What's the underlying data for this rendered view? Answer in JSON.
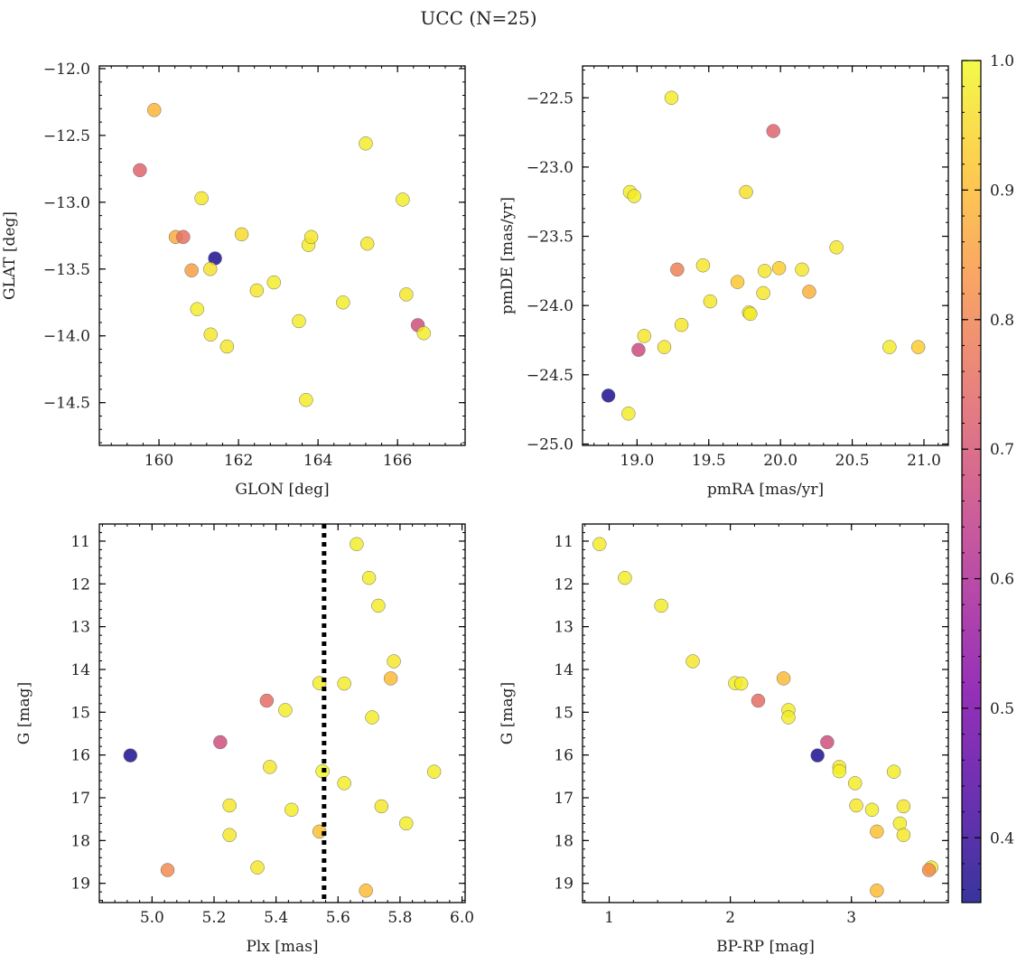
{
  "figure": {
    "title": "UCC (N=25)"
  },
  "colorbar": {
    "range": [
      0.35,
      1.0
    ],
    "ticks": [
      0.4,
      0.5,
      0.6,
      0.7,
      0.8,
      0.9,
      1.0
    ],
    "colormap": "plasma"
  },
  "chart_data": [
    {
      "type": "scatter",
      "xlabel": "GLON [deg]",
      "ylabel": "GLAT [deg]",
      "xlim": [
        158.5,
        167.7
      ],
      "ylim": [
        -14.82,
        -11.98
      ],
      "xticks": [
        160,
        162,
        164,
        166
      ],
      "yticks": [
        -14.5,
        -14.0,
        -13.5,
        -13.0,
        -12.5,
        -12.0
      ],
      "points": [
        {
          "x": 159.88,
          "y": -12.31,
          "c": 0.89
        },
        {
          "x": 159.52,
          "y": -12.76,
          "c": 0.73
        },
        {
          "x": 161.07,
          "y": -12.97,
          "c": 0.97
        },
        {
          "x": 160.42,
          "y": -13.26,
          "c": 0.87
        },
        {
          "x": 160.61,
          "y": -13.26,
          "c": 0.76
        },
        {
          "x": 161.41,
          "y": -13.42,
          "c": 0.36
        },
        {
          "x": 161.29,
          "y": -13.5,
          "c": 0.96
        },
        {
          "x": 160.82,
          "y": -13.51,
          "c": 0.85
        },
        {
          "x": 162.08,
          "y": -13.24,
          "c": 0.95
        },
        {
          "x": 162.89,
          "y": -13.6,
          "c": 0.98
        },
        {
          "x": 162.46,
          "y": -13.66,
          "c": 0.97
        },
        {
          "x": 160.96,
          "y": -13.8,
          "c": 0.98
        },
        {
          "x": 161.3,
          "y": -13.99,
          "c": 0.97
        },
        {
          "x": 161.71,
          "y": -14.08,
          "c": 0.97
        },
        {
          "x": 163.52,
          "y": -13.89,
          "c": 0.98
        },
        {
          "x": 163.76,
          "y": -13.32,
          "c": 0.98
        },
        {
          "x": 163.83,
          "y": -13.26,
          "c": 0.97
        },
        {
          "x": 163.7,
          "y": -14.48,
          "c": 0.98
        },
        {
          "x": 164.63,
          "y": -13.75,
          "c": 0.98
        },
        {
          "x": 165.2,
          "y": -12.56,
          "c": 0.98
        },
        {
          "x": 165.24,
          "y": -13.31,
          "c": 0.97
        },
        {
          "x": 166.13,
          "y": -12.98,
          "c": 0.98
        },
        {
          "x": 166.22,
          "y": -13.69,
          "c": 0.97
        },
        {
          "x": 166.51,
          "y": -13.92,
          "c": 0.68
        },
        {
          "x": 166.66,
          "y": -13.98,
          "c": 0.98
        }
      ]
    },
    {
      "type": "scatter",
      "xlabel": "pmRA [mas/yr]",
      "ylabel": "pmDE [mas/yr]",
      "xlim": [
        18.62,
        21.17
      ],
      "ylim": [
        -25.01,
        -22.27
      ],
      "xticks": [
        19.0,
        19.5,
        20.0,
        20.5,
        21.0
      ],
      "yticks": [
        -25.0,
        -24.5,
        -24.0,
        -23.5,
        -23.0,
        -22.5
      ],
      "points": [
        {
          "x": 19.24,
          "y": -22.5,
          "c": 0.98
        },
        {
          "x": 19.95,
          "y": -22.74,
          "c": 0.73
        },
        {
          "x": 18.95,
          "y": -23.18,
          "c": 0.98
        },
        {
          "x": 18.98,
          "y": -23.21,
          "c": 0.98
        },
        {
          "x": 19.76,
          "y": -23.18,
          "c": 0.96
        },
        {
          "x": 20.39,
          "y": -23.58,
          "c": 0.97
        },
        {
          "x": 19.28,
          "y": -23.74,
          "c": 0.79
        },
        {
          "x": 19.46,
          "y": -23.71,
          "c": 0.97
        },
        {
          "x": 19.7,
          "y": -23.83,
          "c": 0.92
        },
        {
          "x": 19.89,
          "y": -23.75,
          "c": 0.97
        },
        {
          "x": 19.99,
          "y": -23.73,
          "c": 0.93
        },
        {
          "x": 20.15,
          "y": -23.74,
          "c": 0.97
        },
        {
          "x": 20.2,
          "y": -23.9,
          "c": 0.88
        },
        {
          "x": 19.51,
          "y": -23.97,
          "c": 0.97
        },
        {
          "x": 19.88,
          "y": -23.91,
          "c": 0.97
        },
        {
          "x": 19.78,
          "y": -24.05,
          "c": 0.97
        },
        {
          "x": 19.79,
          "y": -24.06,
          "c": 0.98
        },
        {
          "x": 19.31,
          "y": -24.14,
          "c": 0.97
        },
        {
          "x": 19.05,
          "y": -24.22,
          "c": 0.97
        },
        {
          "x": 19.01,
          "y": -24.32,
          "c": 0.67
        },
        {
          "x": 19.19,
          "y": -24.3,
          "c": 0.97
        },
        {
          "x": 20.76,
          "y": -24.3,
          "c": 0.98
        },
        {
          "x": 20.96,
          "y": -24.3,
          "c": 0.93
        },
        {
          "x": 18.8,
          "y": -24.65,
          "c": 0.36
        },
        {
          "x": 18.94,
          "y": -24.78,
          "c": 0.98
        }
      ]
    },
    {
      "type": "scatter",
      "xlabel": "Plx [mas]",
      "ylabel": "G [mag]",
      "xlim": [
        4.83,
        6.01
      ],
      "ylim": [
        19.45,
        10.6
      ],
      "xticks": [
        5.0,
        5.2,
        5.4,
        5.6,
        5.8,
        6.0
      ],
      "yticks": [
        11,
        12,
        13,
        14,
        15,
        16,
        17,
        18,
        19
      ],
      "vline": {
        "x": 5.555,
        "style": "dotted"
      },
      "points": [
        {
          "x": 5.66,
          "y": 11.07,
          "c": 0.98
        },
        {
          "x": 5.7,
          "y": 11.86,
          "c": 0.98
        },
        {
          "x": 5.73,
          "y": 12.51,
          "c": 0.98
        },
        {
          "x": 5.78,
          "y": 13.81,
          "c": 0.97
        },
        {
          "x": 5.77,
          "y": 14.21,
          "c": 0.9
        },
        {
          "x": 5.54,
          "y": 14.32,
          "c": 0.98
        },
        {
          "x": 5.62,
          "y": 14.33,
          "c": 0.98
        },
        {
          "x": 5.37,
          "y": 14.73,
          "c": 0.75
        },
        {
          "x": 5.43,
          "y": 14.95,
          "c": 0.98
        },
        {
          "x": 5.71,
          "y": 15.12,
          "c": 0.98
        },
        {
          "x": 5.22,
          "y": 15.7,
          "c": 0.68
        },
        {
          "x": 4.93,
          "y": 16.01,
          "c": 0.36
        },
        {
          "x": 5.38,
          "y": 16.28,
          "c": 0.97
        },
        {
          "x": 5.55,
          "y": 16.38,
          "c": 0.99
        },
        {
          "x": 5.91,
          "y": 16.39,
          "c": 0.98
        },
        {
          "x": 5.62,
          "y": 16.66,
          "c": 0.98
        },
        {
          "x": 5.25,
          "y": 17.18,
          "c": 0.97
        },
        {
          "x": 5.74,
          "y": 17.2,
          "c": 0.97
        },
        {
          "x": 5.45,
          "y": 17.28,
          "c": 0.98
        },
        {
          "x": 5.82,
          "y": 17.6,
          "c": 0.98
        },
        {
          "x": 5.54,
          "y": 17.79,
          "c": 0.91
        },
        {
          "x": 5.25,
          "y": 17.87,
          "c": 0.97
        },
        {
          "x": 5.34,
          "y": 18.63,
          "c": 0.97
        },
        {
          "x": 5.05,
          "y": 18.69,
          "c": 0.81
        },
        {
          "x": 5.69,
          "y": 19.17,
          "c": 0.9
        }
      ]
    },
    {
      "type": "scatter",
      "xlabel": "BP-RP [mag]",
      "ylabel": "G [mag]",
      "xlim": [
        0.78,
        3.8
      ],
      "ylim": [
        19.45,
        10.6
      ],
      "xticks": [
        1,
        2,
        3
      ],
      "yticks": [
        11,
        12,
        13,
        14,
        15,
        16,
        17,
        18,
        19
      ],
      "points": [
        {
          "x": 0.92,
          "y": 11.07,
          "c": 0.98
        },
        {
          "x": 1.13,
          "y": 11.86,
          "c": 0.98
        },
        {
          "x": 1.43,
          "y": 12.51,
          "c": 0.98
        },
        {
          "x": 1.69,
          "y": 13.81,
          "c": 0.97
        },
        {
          "x": 2.44,
          "y": 14.21,
          "c": 0.9
        },
        {
          "x": 2.04,
          "y": 14.32,
          "c": 0.98
        },
        {
          "x": 2.09,
          "y": 14.33,
          "c": 0.98
        },
        {
          "x": 2.23,
          "y": 14.73,
          "c": 0.75
        },
        {
          "x": 2.48,
          "y": 14.95,
          "c": 0.98
        },
        {
          "x": 2.48,
          "y": 15.12,
          "c": 0.98
        },
        {
          "x": 2.8,
          "y": 15.7,
          "c": 0.68
        },
        {
          "x": 2.72,
          "y": 16.01,
          "c": 0.36
        },
        {
          "x": 2.9,
          "y": 16.28,
          "c": 0.97
        },
        {
          "x": 2.9,
          "y": 16.38,
          "c": 0.99
        },
        {
          "x": 3.35,
          "y": 16.39,
          "c": 0.98
        },
        {
          "x": 3.03,
          "y": 16.66,
          "c": 0.98
        },
        {
          "x": 3.04,
          "y": 17.18,
          "c": 0.97
        },
        {
          "x": 3.43,
          "y": 17.2,
          "c": 0.97
        },
        {
          "x": 3.17,
          "y": 17.28,
          "c": 0.98
        },
        {
          "x": 3.4,
          "y": 17.6,
          "c": 0.98
        },
        {
          "x": 3.21,
          "y": 17.79,
          "c": 0.91
        },
        {
          "x": 3.43,
          "y": 17.87,
          "c": 0.97
        },
        {
          "x": 3.66,
          "y": 18.63,
          "c": 0.97
        },
        {
          "x": 3.64,
          "y": 18.69,
          "c": 0.81
        },
        {
          "x": 3.21,
          "y": 19.17,
          "c": 0.9
        }
      ]
    }
  ]
}
